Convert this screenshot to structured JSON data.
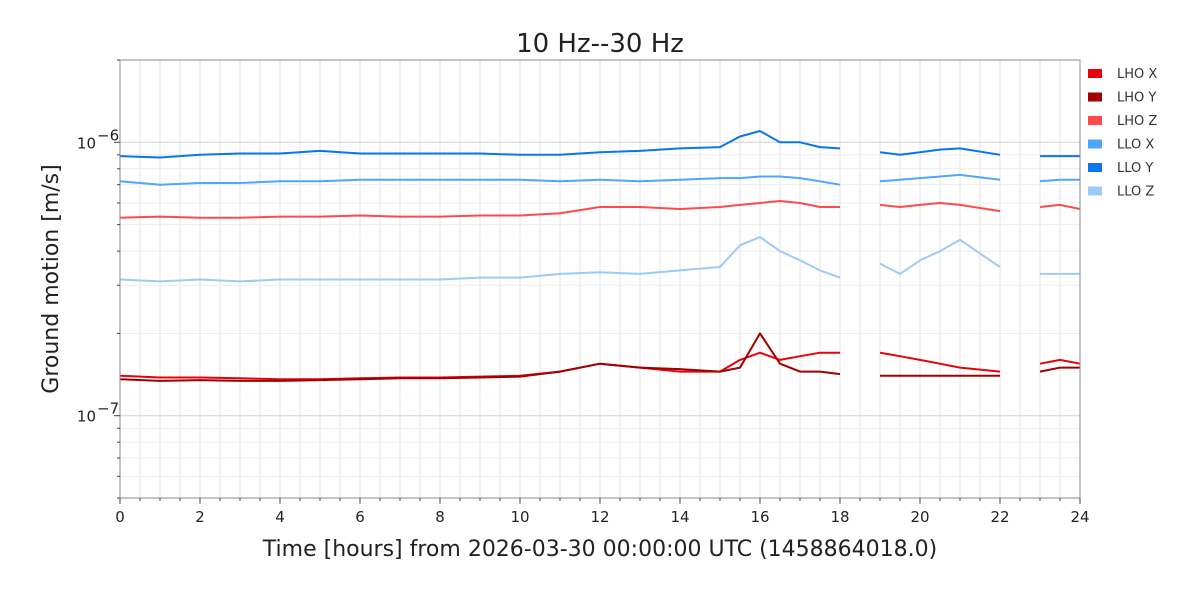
{
  "chart_data": {
    "type": "line",
    "title": "10 Hz--30 Hz",
    "xlabel": "Time [hours] from 2026-03-30 00:00:00 UTC (1458864018.0)",
    "ylabel": "Ground motion [m/s]",
    "xlim": [
      0,
      24
    ],
    "ylim": [
      5e-08,
      2e-06
    ],
    "yscale": "log",
    "grid": true,
    "legend_position": "right",
    "x_ticks": [
      {
        "v": 0,
        "label": "0"
      },
      {
        "v": 2,
        "label": "2"
      },
      {
        "v": 4,
        "label": "4"
      },
      {
        "v": 6,
        "label": "6"
      },
      {
        "v": 8,
        "label": "8"
      },
      {
        "v": 10,
        "label": "10"
      },
      {
        "v": 12,
        "label": "12"
      },
      {
        "v": 14,
        "label": "14"
      },
      {
        "v": 16,
        "label": "16"
      },
      {
        "v": 18,
        "label": "18"
      },
      {
        "v": 20,
        "label": "20"
      },
      {
        "v": 22,
        "label": "22"
      },
      {
        "v": 24,
        "label": "24"
      }
    ],
    "y_ticks": [
      {
        "v": 1e-07,
        "base": "10",
        "exp": "−7"
      },
      {
        "v": 1e-06,
        "base": "10",
        "exp": "−6"
      }
    ],
    "x": [
      0,
      1,
      2,
      3,
      4,
      5,
      6,
      7,
      8,
      9,
      10,
      11,
      12,
      13,
      14,
      15,
      15.5,
      16,
      16.5,
      17,
      17.5,
      18,
      19,
      19.5,
      20,
      20.5,
      21,
      22,
      23,
      23.5,
      24
    ],
    "series": [
      {
        "name": "LHO X",
        "color": "#e8000b",
        "values": [
          1.4e-07,
          1.38e-07,
          1.38e-07,
          1.37e-07,
          1.36e-07,
          1.36e-07,
          1.37e-07,
          1.38e-07,
          1.38e-07,
          1.39e-07,
          1.4e-07,
          1.45e-07,
          1.55e-07,
          1.5e-07,
          1.45e-07,
          1.45e-07,
          1.6e-07,
          1.7e-07,
          1.6e-07,
          1.65e-07,
          1.7e-07,
          1.7e-07,
          1.7e-07,
          1.65e-07,
          1.6e-07,
          1.55e-07,
          1.5e-07,
          1.45e-07,
          1.55e-07,
          1.6e-07,
          1.55e-07
        ]
      },
      {
        "name": "LHO Y",
        "color": "#a00000",
        "values": [
          1.36e-07,
          1.34e-07,
          1.35e-07,
          1.34e-07,
          1.34e-07,
          1.35e-07,
          1.36e-07,
          1.37e-07,
          1.37e-07,
          1.38e-07,
          1.39e-07,
          1.45e-07,
          1.55e-07,
          1.5e-07,
          1.48e-07,
          1.45e-07,
          1.5e-07,
          2e-07,
          1.55e-07,
          1.45e-07,
          1.45e-07,
          1.42e-07,
          1.4e-07,
          1.4e-07,
          1.4e-07,
          1.4e-07,
          1.4e-07,
          1.4e-07,
          1.45e-07,
          1.5e-07,
          1.5e-07
        ]
      },
      {
        "name": "LHO Z",
        "color": "#ff4a4d",
        "values": [
          5.3e-07,
          5.35e-07,
          5.3e-07,
          5.3e-07,
          5.35e-07,
          5.35e-07,
          5.4e-07,
          5.35e-07,
          5.35e-07,
          5.4e-07,
          5.4e-07,
          5.5e-07,
          5.8e-07,
          5.8e-07,
          5.7e-07,
          5.8e-07,
          5.9e-07,
          6e-07,
          6.1e-07,
          6e-07,
          5.8e-07,
          5.8e-07,
          5.9e-07,
          5.8e-07,
          5.9e-07,
          6e-07,
          5.9e-07,
          5.6e-07,
          5.8e-07,
          5.9e-07,
          5.7e-07
        ]
      },
      {
        "name": "LLO X",
        "color": "#4da6ff",
        "values": [
          7.2e-07,
          7e-07,
          7.1e-07,
          7.1e-07,
          7.2e-07,
          7.2e-07,
          7.3e-07,
          7.3e-07,
          7.3e-07,
          7.3e-07,
          7.3e-07,
          7.2e-07,
          7.3e-07,
          7.2e-07,
          7.3e-07,
          7.4e-07,
          7.4e-07,
          7.5e-07,
          7.5e-07,
          7.4e-07,
          7.2e-07,
          7e-07,
          7.2e-07,
          7.3e-07,
          7.4e-07,
          7.5e-07,
          7.6e-07,
          7.3e-07,
          7.2e-07,
          7.3e-07,
          7.3e-07
        ]
      },
      {
        "name": "LLO Y",
        "color": "#0a75f0",
        "values": [
          8.9e-07,
          8.8e-07,
          9e-07,
          9.1e-07,
          9.1e-07,
          9.3e-07,
          9.1e-07,
          9.1e-07,
          9.1e-07,
          9.1e-07,
          9e-07,
          9e-07,
          9.2e-07,
          9.3e-07,
          9.5e-07,
          9.6e-07,
          1.05e-06,
          1.1e-06,
          1e-06,
          1e-06,
          9.6e-07,
          9.5e-07,
          9.2e-07,
          9e-07,
          9.2e-07,
          9.4e-07,
          9.5e-07,
          9e-07,
          8.9e-07,
          8.9e-07,
          8.9e-07
        ]
      },
      {
        "name": "LLO Z",
        "color": "#9ccbf7",
        "values": [
          3.15e-07,
          3.1e-07,
          3.15e-07,
          3.1e-07,
          3.15e-07,
          3.15e-07,
          3.15e-07,
          3.15e-07,
          3.15e-07,
          3.2e-07,
          3.2e-07,
          3.3e-07,
          3.35e-07,
          3.3e-07,
          3.4e-07,
          3.5e-07,
          4.2e-07,
          4.5e-07,
          4e-07,
          3.7e-07,
          3.4e-07,
          3.2e-07,
          3.6e-07,
          3.3e-07,
          3.7e-07,
          4e-07,
          4.4e-07,
          3.5e-07,
          3.3e-07,
          3.3e-07,
          3.3e-07
        ]
      }
    ]
  }
}
